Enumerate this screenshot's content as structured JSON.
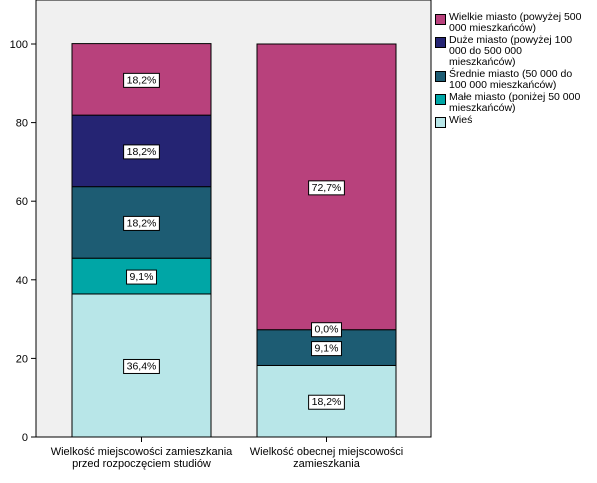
{
  "chart_data": {
    "type": "bar",
    "stacked": true,
    "categories": [
      "Wielkość miejscowości zamieszkania przed rozpoczęciem studiów",
      "Wielkość obecnej miejscowości zamieszkania"
    ],
    "category_lines": [
      [
        "Wielkość miejscowości zamieszkania",
        "przed rozpoczęciem studiów"
      ],
      [
        "Wielkość obecnej miejscowości",
        "zamieszkania"
      ]
    ],
    "ylim": [
      0,
      100
    ],
    "yticks": [
      "0",
      "20",
      "40",
      "60",
      "80",
      "100"
    ],
    "grid": false,
    "legend_position": "top-right",
    "series": [
      {
        "name": "Wieś",
        "color": "#b8e6e8",
        "values": [
          36.4,
          18.2
        ],
        "labels": [
          "36,4%",
          "18,2%"
        ]
      },
      {
        "name": "Małe miasto (poniżej 50 000 mieszkańców)",
        "color": "#00a6a6",
        "values": [
          9.1,
          0
        ],
        "labels": [
          "9,1%",
          ""
        ]
      },
      {
        "name": "Średnie miasto (50 000 do 100 000 mieszkańców)",
        "color": "#1d5c73",
        "values": [
          18.2,
          9.1
        ],
        "labels": [
          "18,2%",
          "9,1%"
        ]
      },
      {
        "name": "Duże miasto (powyżej 100 000 do 500 000 mieszkańców)",
        "color": "#252473",
        "values": [
          18.2,
          0
        ],
        "labels": [
          "18,2%",
          "0,0%"
        ]
      },
      {
        "name": "Wielkie miasto (powyżej 500 000 mieszkańców)",
        "color": "#b8417c",
        "values": [
          18.2,
          72.7
        ],
        "labels": [
          "18,2%",
          "72,7%"
        ]
      }
    ],
    "legend": [
      {
        "lines": [
          "Wielkie miasto (powyżej 500",
          "000 mieszkańców)"
        ],
        "color": "#b8417c"
      },
      {
        "lines": [
          "Duże miasto (powyżej 100",
          "000 do 500 000",
          "mieszkańców)"
        ],
        "color": "#252473"
      },
      {
        "lines": [
          "Średnie miasto (50 000 do",
          "100 000 mieszkańców)"
        ],
        "color": "#1d5c73"
      },
      {
        "lines": [
          "Małe miasto (poniżej 50 000",
          "mieszkańców)"
        ],
        "color": "#00a6a6"
      },
      {
        "lines": [
          "Wieś"
        ],
        "color": "#b8e6e8"
      }
    ],
    "plot_background": "#f0f0f0"
  }
}
